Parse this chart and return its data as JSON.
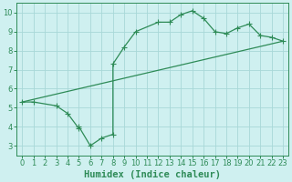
{
  "line1_x": [
    0,
    1,
    3,
    4,
    5,
    5,
    6,
    7,
    8,
    8,
    9,
    10,
    12,
    13,
    14,
    15,
    16,
    17,
    18,
    19,
    20,
    21,
    22,
    23
  ],
  "line1_y": [
    5.3,
    5.3,
    5.1,
    4.7,
    3.9,
    4.0,
    3.0,
    3.4,
    3.6,
    7.3,
    8.2,
    9.0,
    9.5,
    9.5,
    9.9,
    10.1,
    9.7,
    9.0,
    8.9,
    9.2,
    9.4,
    8.8,
    8.7,
    8.5
  ],
  "line2_x": [
    0,
    23
  ],
  "line2_y": [
    5.3,
    8.5
  ],
  "color": "#2e8b57",
  "bg_color": "#cff0f0",
  "grid_color": "#a8d8d8",
  "xlabel": "Humidex (Indice chaleur)",
  "xlim": [
    -0.5,
    23.5
  ],
  "ylim": [
    2.5,
    10.5
  ],
  "xticks": [
    0,
    1,
    2,
    3,
    4,
    5,
    6,
    7,
    8,
    9,
    10,
    11,
    12,
    13,
    14,
    15,
    16,
    17,
    18,
    19,
    20,
    21,
    22,
    23
  ],
  "yticks": [
    3,
    4,
    5,
    6,
    7,
    8,
    9,
    10
  ],
  "marker": "+",
  "markersize": 4,
  "linewidth": 0.9,
  "xlabel_fontsize": 7.5,
  "tick_fontsize": 6,
  "tick_color": "#2e8b57",
  "label_color": "#2e8b57",
  "spine_color": "#2e8b57"
}
